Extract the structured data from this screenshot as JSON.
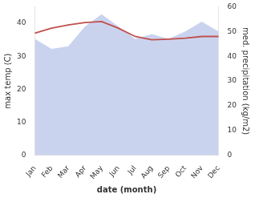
{
  "chart_data": {
    "type": "line",
    "categories": [
      "Jan",
      "Feb",
      "Mar",
      "Apr",
      "May",
      "Jun",
      "Jul",
      "Aug",
      "Sep",
      "Oct",
      "Nov",
      "Dec"
    ],
    "xlabel": "date (month)",
    "ylabel": "max temp (C)",
    "y2label": "med. precipitation (kg/m2)",
    "series": [
      {
        "type": "area",
        "axis": "y2",
        "color": "#b8c4e8",
        "values": [
          47,
          43,
          44,
          52,
          57,
          52,
          47,
          49,
          47,
          50,
          54,
          50
        ]
      },
      {
        "type": "line",
        "color": "#c0504d",
        "values": [
          37.0,
          38.5,
          39.5,
          40.2,
          40.5,
          38.5,
          36.0,
          35.0,
          35.2,
          35.5,
          36.0,
          36.0
        ]
      }
    ],
    "ylim": [
      0,
      45
    ],
    "yticks": [
      0,
      10,
      20,
      30,
      40
    ],
    "y2lim": [
      0,
      60
    ],
    "y2ticks": [
      0,
      10,
      20,
      30,
      40,
      50,
      60
    ],
    "grid": false
  }
}
